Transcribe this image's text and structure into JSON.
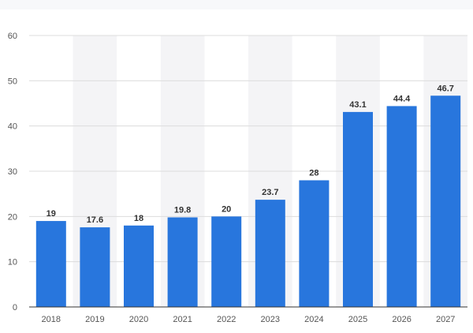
{
  "chart_data": {
    "type": "bar",
    "categories": [
      "2018",
      "2019",
      "2020",
      "2021",
      "2022",
      "2023",
      "2024",
      "2025",
      "2026",
      "2027"
    ],
    "values": [
      19,
      17.6,
      18,
      19.8,
      20,
      23.7,
      28,
      43.1,
      44.4,
      46.7
    ],
    "value_labels": [
      "19",
      "17.6",
      "18",
      "19.8",
      "20",
      "23.7",
      "28",
      "43.1",
      "44.4",
      "46.7"
    ],
    "yticks": [
      0,
      10,
      20,
      30,
      40,
      50,
      60
    ],
    "ylim": [
      0,
      60
    ],
    "title": "",
    "xlabel": "",
    "ylabel": "",
    "grid": true,
    "alternating_column_shading": true,
    "colors": {
      "bar": "#2876dd",
      "band": "#f4f4f6",
      "grid": "#dcdcdc",
      "axis": "#333333",
      "top_strip": "#f7f8fa"
    }
  }
}
